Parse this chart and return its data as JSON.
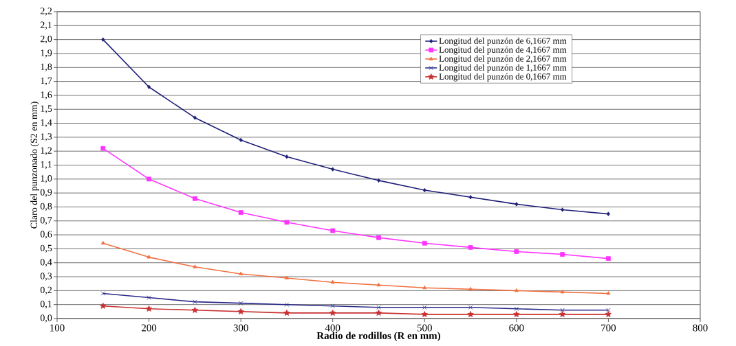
{
  "chart_data": {
    "type": "line",
    "xlabel": "Radio de rodillos (R en mm)",
    "ylabel": "Claro del punzonado (S2 en mm)",
    "x": [
      150,
      200,
      250,
      300,
      350,
      400,
      450,
      500,
      550,
      600,
      650,
      700
    ],
    "series": [
      {
        "name": "Longitud del punzón de 6,1667 mm",
        "color": "#1f1f7a",
        "marker": "diamond",
        "values": [
          2.0,
          1.66,
          1.44,
          1.28,
          1.16,
          1.07,
          0.99,
          0.92,
          0.87,
          0.82,
          0.78,
          0.75
        ]
      },
      {
        "name": "Longitud del punzón de 4,1667 mm",
        "color": "#ff33ff",
        "marker": "square",
        "values": [
          1.22,
          1.0,
          0.86,
          0.76,
          0.69,
          0.63,
          0.58,
          0.54,
          0.51,
          0.48,
          0.46,
          0.43
        ]
      },
      {
        "name": "Longitud del punzón de 2,1667 mm",
        "color": "#f07040",
        "marker": "triangle",
        "values": [
          0.54,
          0.44,
          0.37,
          0.32,
          0.29,
          0.26,
          0.24,
          0.22,
          0.21,
          0.2,
          0.19,
          0.18
        ]
      },
      {
        "name": "Longitud del punzón de 1,1667 mm",
        "color": "#2a2a8a",
        "marker": "cross",
        "values": [
          0.18,
          0.15,
          0.12,
          0.11,
          0.1,
          0.09,
          0.08,
          0.08,
          0.08,
          0.07,
          0.06,
          0.06
        ]
      },
      {
        "name": "Longitud del punzón de 0,1667 mm",
        "color": "#c83030",
        "marker": "star",
        "values": [
          0.09,
          0.07,
          0.06,
          0.05,
          0.04,
          0.04,
          0.04,
          0.03,
          0.03,
          0.03,
          0.03,
          0.03
        ]
      }
    ],
    "xlim": [
      100,
      800
    ],
    "xticks": [
      100,
      200,
      300,
      400,
      500,
      600,
      700,
      800
    ],
    "ylim": [
      0,
      2.2
    ],
    "yticks": [
      {
        "value": 0,
        "label": "0,0"
      },
      {
        "value": 0.1,
        "label": "0,1"
      },
      {
        "value": 0.2,
        "label": "0,2"
      },
      {
        "value": 0.3,
        "label": "0,3"
      },
      {
        "value": 0.4,
        "label": "0,4"
      },
      {
        "value": 0.5,
        "label": "0,5"
      },
      {
        "value": 0.6,
        "label": "0,6"
      },
      {
        "value": 0.7,
        "label": "0,7"
      },
      {
        "value": 0.8,
        "label": "0,8"
      },
      {
        "value": 0.9,
        "label": "0,9"
      },
      {
        "value": 1.0,
        "label": "1,0"
      },
      {
        "value": 1.1,
        "label": "1,1"
      },
      {
        "value": 1.2,
        "label": "1,2"
      },
      {
        "value": 1.3,
        "label": "1,3"
      },
      {
        "value": 1.4,
        "label": "1,4"
      },
      {
        "value": 1.5,
        "label": "1,5"
      },
      {
        "value": 1.6,
        "label": "1,6"
      },
      {
        "value": 1.7,
        "label": "1,7"
      },
      {
        "value": 1.8,
        "label": "1,8"
      },
      {
        "value": 1.9,
        "label": "1,9"
      },
      {
        "value": 2.0,
        "label": "2,0"
      },
      {
        "value": 2.1,
        "label": "2,1"
      },
      {
        "value": 2.2,
        "label": "2,2"
      }
    ],
    "grid": "y",
    "legend": "top right",
    "line_style": "solid"
  }
}
